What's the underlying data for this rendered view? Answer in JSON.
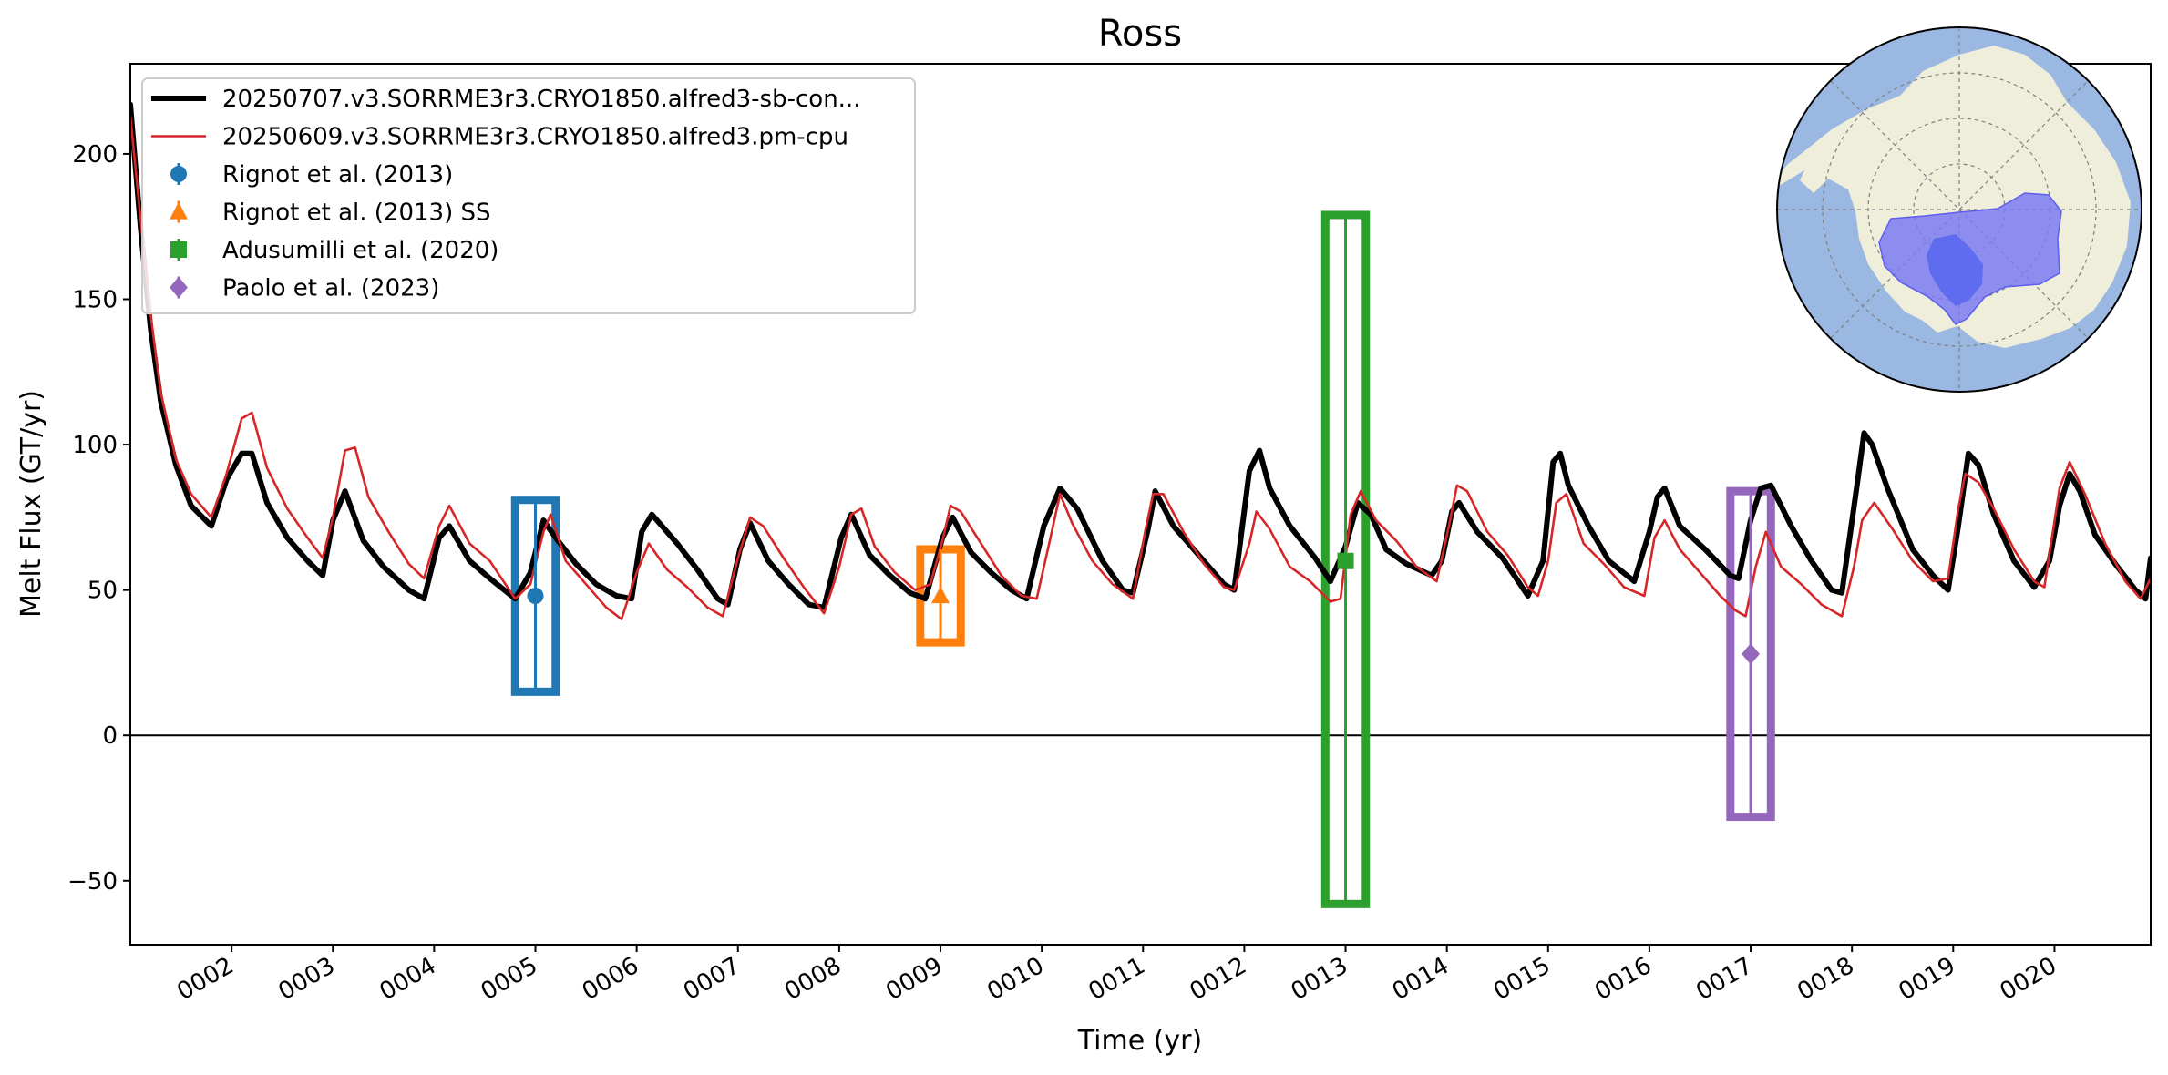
{
  "chart_data": {
    "type": "line",
    "title": "Ross",
    "xlabel": "Time (yr)",
    "ylabel": "Melt Flux (GT/yr)",
    "xlim": [
      1.0,
      20.95
    ],
    "ylim": [
      -72,
      231
    ],
    "x_ticks": [
      2,
      3,
      4,
      5,
      6,
      7,
      8,
      9,
      10,
      11,
      12,
      13,
      14,
      15,
      16,
      17,
      18,
      19,
      20
    ],
    "x_tick_labels": [
      "0002",
      "0003",
      "0004",
      "0005",
      "0006",
      "0007",
      "0008",
      "0009",
      "0010",
      "0011",
      "0012",
      "0013",
      "0014",
      "0015",
      "0016",
      "0017",
      "0018",
      "0019",
      "0020"
    ],
    "y_ticks": [
      -50,
      0,
      50,
      100,
      150,
      200
    ],
    "y_tick_labels": [
      "−50",
      "0",
      "50",
      "100",
      "150",
      "200"
    ],
    "zero_line": 0,
    "legend_position": "upper-left",
    "series": [
      {
        "name": "20250707.v3.SORRME3r3.CRYO1850.alfred3-sb-con...",
        "color": "#000000",
        "style": "thick-line",
        "points": [
          [
            1.0,
            217
          ],
          [
            1.1,
            175
          ],
          [
            1.2,
            140
          ],
          [
            1.3,
            115
          ],
          [
            1.45,
            93
          ],
          [
            1.6,
            79
          ],
          [
            1.8,
            72
          ],
          [
            1.95,
            88
          ],
          [
            2.1,
            97
          ],
          [
            2.2,
            97
          ],
          [
            2.35,
            80
          ],
          [
            2.55,
            68
          ],
          [
            2.75,
            60
          ],
          [
            2.9,
            55
          ],
          [
            3.0,
            74
          ],
          [
            3.12,
            84
          ],
          [
            3.3,
            67
          ],
          [
            3.5,
            58
          ],
          [
            3.75,
            50
          ],
          [
            3.9,
            47
          ],
          [
            4.05,
            68
          ],
          [
            4.15,
            72
          ],
          [
            4.35,
            60
          ],
          [
            4.55,
            54
          ],
          [
            4.8,
            47
          ],
          [
            4.95,
            56
          ],
          [
            5.08,
            74
          ],
          [
            5.2,
            68
          ],
          [
            5.4,
            59
          ],
          [
            5.6,
            52
          ],
          [
            5.8,
            48
          ],
          [
            5.95,
            47
          ],
          [
            6.05,
            70
          ],
          [
            6.15,
            76
          ],
          [
            6.4,
            66
          ],
          [
            6.6,
            57
          ],
          [
            6.8,
            47
          ],
          [
            6.9,
            45
          ],
          [
            7.02,
            64
          ],
          [
            7.12,
            73
          ],
          [
            7.3,
            60
          ],
          [
            7.5,
            52
          ],
          [
            7.7,
            45
          ],
          [
            7.85,
            44
          ],
          [
            8.02,
            68
          ],
          [
            8.12,
            76
          ],
          [
            8.3,
            62
          ],
          [
            8.5,
            55
          ],
          [
            8.7,
            49
          ],
          [
            8.85,
            47
          ],
          [
            9.02,
            68
          ],
          [
            9.12,
            75
          ],
          [
            9.3,
            63
          ],
          [
            9.5,
            56
          ],
          [
            9.7,
            50
          ],
          [
            9.85,
            47
          ],
          [
            10.02,
            72
          ],
          [
            10.18,
            85
          ],
          [
            10.35,
            78
          ],
          [
            10.6,
            60
          ],
          [
            10.8,
            50
          ],
          [
            10.9,
            49
          ],
          [
            11.05,
            71
          ],
          [
            11.12,
            84
          ],
          [
            11.3,
            72
          ],
          [
            11.6,
            60
          ],
          [
            11.8,
            52
          ],
          [
            11.9,
            50
          ],
          [
            12.05,
            91
          ],
          [
            12.15,
            98
          ],
          [
            12.25,
            85
          ],
          [
            12.45,
            72
          ],
          [
            12.7,
            61
          ],
          [
            12.85,
            53
          ],
          [
            13.0,
            65
          ],
          [
            13.12,
            80
          ],
          [
            13.25,
            76
          ],
          [
            13.4,
            64
          ],
          [
            13.6,
            59
          ],
          [
            13.85,
            55
          ],
          [
            13.95,
            60
          ],
          [
            14.05,
            77
          ],
          [
            14.12,
            80
          ],
          [
            14.3,
            70
          ],
          [
            14.55,
            61
          ],
          [
            14.8,
            48
          ],
          [
            14.95,
            60
          ],
          [
            15.05,
            94
          ],
          [
            15.12,
            97
          ],
          [
            15.2,
            86
          ],
          [
            15.4,
            72
          ],
          [
            15.6,
            60
          ],
          [
            15.85,
            53
          ],
          [
            16.0,
            70
          ],
          [
            16.08,
            82
          ],
          [
            16.15,
            85
          ],
          [
            16.3,
            72
          ],
          [
            16.55,
            64
          ],
          [
            16.8,
            55
          ],
          [
            16.88,
            54
          ],
          [
            17.0,
            74
          ],
          [
            17.1,
            85
          ],
          [
            17.2,
            86
          ],
          [
            17.4,
            72
          ],
          [
            17.6,
            60
          ],
          [
            17.8,
            50
          ],
          [
            17.9,
            49
          ],
          [
            18.05,
            86
          ],
          [
            18.12,
            104
          ],
          [
            18.2,
            100
          ],
          [
            18.35,
            85
          ],
          [
            18.6,
            64
          ],
          [
            18.8,
            55
          ],
          [
            18.95,
            50
          ],
          [
            19.05,
            72
          ],
          [
            19.15,
            97
          ],
          [
            19.25,
            93
          ],
          [
            19.4,
            76
          ],
          [
            19.6,
            60
          ],
          [
            19.8,
            51
          ],
          [
            19.95,
            60
          ],
          [
            20.05,
            79
          ],
          [
            20.15,
            90
          ],
          [
            20.25,
            84
          ],
          [
            20.4,
            69
          ],
          [
            20.6,
            59
          ],
          [
            20.8,
            50
          ],
          [
            20.9,
            47
          ],
          [
            20.95,
            61
          ]
        ]
      },
      {
        "name": "20250609.v3.SORRME3r3.CRYO1850.alfred3.pm-cpu",
        "color": "#d62728",
        "style": "thin-line",
        "points": [
          [
            1.0,
            213
          ],
          [
            1.1,
            178
          ],
          [
            1.2,
            145
          ],
          [
            1.3,
            118
          ],
          [
            1.45,
            95
          ],
          [
            1.6,
            83
          ],
          [
            1.8,
            75
          ],
          [
            1.95,
            90
          ],
          [
            2.1,
            109
          ],
          [
            2.2,
            111
          ],
          [
            2.35,
            92
          ],
          [
            2.55,
            78
          ],
          [
            2.75,
            68
          ],
          [
            2.9,
            61
          ],
          [
            3.0,
            75
          ],
          [
            3.12,
            98
          ],
          [
            3.22,
            99
          ],
          [
            3.35,
            82
          ],
          [
            3.55,
            70
          ],
          [
            3.75,
            59
          ],
          [
            3.9,
            54
          ],
          [
            4.05,
            72
          ],
          [
            4.15,
            79
          ],
          [
            4.35,
            66
          ],
          [
            4.55,
            60
          ],
          [
            4.8,
            47
          ],
          [
            4.95,
            52
          ],
          [
            5.08,
            70
          ],
          [
            5.15,
            76
          ],
          [
            5.3,
            60
          ],
          [
            5.5,
            52
          ],
          [
            5.7,
            44
          ],
          [
            5.85,
            40
          ],
          [
            6.0,
            56
          ],
          [
            6.12,
            66
          ],
          [
            6.3,
            57
          ],
          [
            6.5,
            51
          ],
          [
            6.7,
            44
          ],
          [
            6.85,
            41
          ],
          [
            7.0,
            61
          ],
          [
            7.12,
            75
          ],
          [
            7.25,
            72
          ],
          [
            7.45,
            61
          ],
          [
            7.65,
            51
          ],
          [
            7.85,
            42
          ],
          [
            8.0,
            58
          ],
          [
            8.12,
            76
          ],
          [
            8.22,
            78
          ],
          [
            8.35,
            65
          ],
          [
            8.55,
            56
          ],
          [
            8.75,
            50
          ],
          [
            8.9,
            52
          ],
          [
            9.02,
            67
          ],
          [
            9.1,
            79
          ],
          [
            9.2,
            77
          ],
          [
            9.4,
            66
          ],
          [
            9.6,
            55
          ],
          [
            9.8,
            48
          ],
          [
            9.95,
            47
          ],
          [
            10.08,
            67
          ],
          [
            10.18,
            83
          ],
          [
            10.3,
            73
          ],
          [
            10.5,
            60
          ],
          [
            10.7,
            52
          ],
          [
            10.9,
            47
          ],
          [
            11.02,
            70
          ],
          [
            11.1,
            83
          ],
          [
            11.2,
            83
          ],
          [
            11.4,
            70
          ],
          [
            11.6,
            59
          ],
          [
            11.8,
            51
          ],
          [
            11.9,
            50
          ],
          [
            12.05,
            66
          ],
          [
            12.12,
            77
          ],
          [
            12.25,
            71
          ],
          [
            12.45,
            58
          ],
          [
            12.65,
            53
          ],
          [
            12.85,
            46
          ],
          [
            12.95,
            47
          ],
          [
            13.05,
            76
          ],
          [
            13.15,
            84
          ],
          [
            13.3,
            74
          ],
          [
            13.5,
            67
          ],
          [
            13.7,
            58
          ],
          [
            13.9,
            53
          ],
          [
            14.02,
            72
          ],
          [
            14.1,
            86
          ],
          [
            14.2,
            84
          ],
          [
            14.4,
            70
          ],
          [
            14.6,
            62
          ],
          [
            14.8,
            51
          ],
          [
            14.9,
            48
          ],
          [
            15.0,
            60
          ],
          [
            15.08,
            80
          ],
          [
            15.18,
            83
          ],
          [
            15.35,
            66
          ],
          [
            15.55,
            59
          ],
          [
            15.75,
            51
          ],
          [
            15.95,
            48
          ],
          [
            16.05,
            68
          ],
          [
            16.15,
            74
          ],
          [
            16.3,
            64
          ],
          [
            16.5,
            56
          ],
          [
            16.7,
            48
          ],
          [
            16.85,
            43
          ],
          [
            16.95,
            41
          ],
          [
            17.05,
            58
          ],
          [
            17.15,
            70
          ],
          [
            17.3,
            58
          ],
          [
            17.5,
            52
          ],
          [
            17.7,
            45
          ],
          [
            17.9,
            41
          ],
          [
            18.02,
            58
          ],
          [
            18.1,
            74
          ],
          [
            18.22,
            80
          ],
          [
            18.4,
            71
          ],
          [
            18.6,
            60
          ],
          [
            18.8,
            53
          ],
          [
            18.95,
            54
          ],
          [
            19.05,
            78
          ],
          [
            19.12,
            90
          ],
          [
            19.25,
            87
          ],
          [
            19.4,
            78
          ],
          [
            19.6,
            64
          ],
          [
            19.8,
            53
          ],
          [
            19.9,
            51
          ],
          [
            20.05,
            85
          ],
          [
            20.15,
            94
          ],
          [
            20.3,
            83
          ],
          [
            20.5,
            66
          ],
          [
            20.7,
            53
          ],
          [
            20.85,
            47
          ],
          [
            20.95,
            54
          ]
        ]
      }
    ],
    "observations": [
      {
        "name": "Rignot et al. (2013)",
        "color": "#1f77b4",
        "marker": "circle",
        "x": 5.0,
        "y": 48,
        "error": 33,
        "box_x": [
          4.8,
          5.2
        ],
        "box_y": [
          15,
          81
        ]
      },
      {
        "name": "Rignot et al. (2013) SS",
        "color": "#ff7f0e",
        "marker": "triangle",
        "x": 9.0,
        "y": 48,
        "error": 16,
        "box_x": [
          8.8,
          9.2
        ],
        "box_y": [
          32,
          64
        ]
      },
      {
        "name": "Adusumilli et al. (2020)",
        "color": "#2ca02c",
        "marker": "square",
        "x": 13.0,
        "y": 60,
        "error": 119,
        "box_x": [
          12.8,
          13.2
        ],
        "box_y": [
          -58,
          179
        ]
      },
      {
        "name": "Paolo et al. (2023)",
        "color": "#9467bd",
        "marker": "diamond",
        "x": 17.0,
        "y": 28,
        "error": 56,
        "box_x": [
          16.8,
          17.2
        ],
        "box_y": [
          -28,
          84
        ]
      }
    ],
    "inset_map": {
      "type": "polar-map",
      "colors": {
        "ocean": "#9bb8e2",
        "land": "#efeedb",
        "region": "#7b7bf2",
        "region_core": "#5a68ee"
      }
    }
  }
}
